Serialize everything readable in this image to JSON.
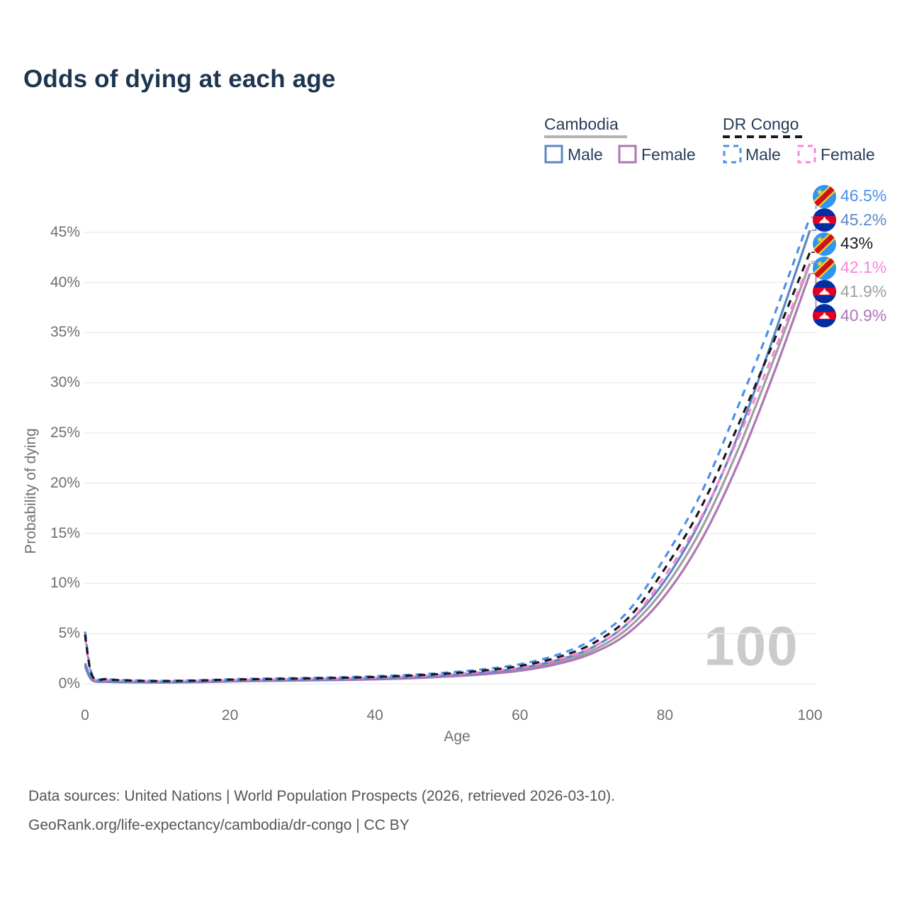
{
  "title": "Odds of dying at each age",
  "age_indicator": "100",
  "legend": {
    "groups": [
      {
        "id": "cambodia",
        "label": "Cambodia",
        "line_style": "solid",
        "items": [
          {
            "id": "camb_male",
            "label": "Male"
          },
          {
            "id": "camb_female",
            "label": "Female"
          }
        ]
      },
      {
        "id": "drcongo",
        "label": "DR Congo",
        "line_style": "dashed",
        "items": [
          {
            "id": "drc_male",
            "label": "Male"
          },
          {
            "id": "drc_female",
            "label": "Female"
          }
        ]
      }
    ]
  },
  "series_colors": {
    "camb_male": "#5b87c3",
    "camb_female": "#ad77b3",
    "camb_comb": "#9f9f9f",
    "drc_male": "#4b90ea",
    "drc_female": "#fb84da",
    "drc_comb": "#1a1a1a"
  },
  "ui_colors": {
    "title": "#1e3550",
    "legend_text": "#263d59",
    "axis_text": "#6f6f6f",
    "grid": "#ededed",
    "watermark": "#cbcbcb",
    "footer": "#555555",
    "cambodia_underline": "#b3b3b3",
    "drcongo_underline": "#1a1a1a"
  },
  "flag_colors": {
    "cambodia_blue": "#032ea1",
    "cambodia_red": "#e00025",
    "cambodia_white": "#ffffff",
    "drc_blue": "#2f95f3",
    "drc_yellow": "#f7d618",
    "drc_red": "#d01317"
  },
  "chart_data": {
    "type": "line",
    "title": "Odds of dying at each age",
    "xlabel": "Age",
    "ylabel": "Probability of dying",
    "xlim": [
      0,
      100
    ],
    "ylim_percent": [
      0,
      48
    ],
    "xticks": [
      0,
      20,
      40,
      60,
      80,
      100
    ],
    "yticks_percent": [
      0,
      5,
      10,
      15,
      20,
      25,
      30,
      35,
      40,
      45
    ],
    "grid": "horizontal-only",
    "legend_position": "top-right",
    "x": [
      0,
      1,
      3,
      5,
      10,
      15,
      20,
      25,
      30,
      35,
      40,
      45,
      50,
      55,
      60,
      65,
      70,
      75,
      80,
      85,
      90,
      95,
      100
    ],
    "series": [
      {
        "id": "camb_comb",
        "name": "Cambodia (both sexes)",
        "country": "Cambodia",
        "sex": "both",
        "line": "solid",
        "color_key": "camb_comb",
        "values": [
          1.88,
          0.38,
          0.22,
          0.17,
          0.14,
          0.18,
          0.27,
          0.32,
          0.36,
          0.41,
          0.48,
          0.6,
          0.78,
          1.02,
          1.42,
          2.12,
          3.32,
          5.6,
          9.6,
          15.4,
          23.2,
          32.3,
          41.9
        ],
        "end_label": "41.9%"
      },
      {
        "id": "camb_female",
        "name": "Cambodia Female",
        "country": "Cambodia",
        "sex": "female",
        "line": "solid",
        "color_key": "camb_female",
        "values": [
          1.72,
          0.35,
          0.2,
          0.16,
          0.13,
          0.16,
          0.24,
          0.29,
          0.33,
          0.38,
          0.44,
          0.55,
          0.72,
          0.94,
          1.3,
          1.95,
          3.05,
          5.1,
          8.8,
          14.3,
          21.8,
          30.9,
          40.9
        ],
        "end_label": "40.9%"
      },
      {
        "id": "camb_male",
        "name": "Cambodia Male",
        "country": "Cambodia",
        "sex": "male",
        "line": "solid",
        "color_key": "camb_male",
        "values": [
          2.05,
          0.42,
          0.25,
          0.19,
          0.16,
          0.2,
          0.3,
          0.35,
          0.4,
          0.46,
          0.53,
          0.66,
          0.86,
          1.12,
          1.56,
          2.32,
          3.62,
          6.1,
          10.3,
          16.4,
          24.6,
          34.6,
          45.2
        ],
        "end_label": "45.2%"
      },
      {
        "id": "drc_male",
        "name": "DR Congo Male",
        "country": "DR Congo",
        "sex": "male",
        "line": "dashed",
        "color_key": "drc_male",
        "values": [
          5.2,
          0.85,
          0.5,
          0.38,
          0.3,
          0.34,
          0.45,
          0.52,
          0.58,
          0.65,
          0.75,
          0.9,
          1.12,
          1.45,
          1.95,
          2.85,
          4.4,
          7.3,
          12.6,
          19.0,
          27.5,
          36.6,
          46.5
        ],
        "end_label": "46.5%"
      },
      {
        "id": "drc_female",
        "name": "DR Congo Female",
        "country": "DR Congo",
        "sex": "female",
        "line": "dashed",
        "color_key": "drc_female",
        "values": [
          4.6,
          0.72,
          0.42,
          0.32,
          0.25,
          0.28,
          0.37,
          0.43,
          0.48,
          0.54,
          0.62,
          0.75,
          0.93,
          1.2,
          1.62,
          2.38,
          3.66,
          6.1,
          10.8,
          16.6,
          24.3,
          33.0,
          42.1
        ],
        "end_label": "42.1%"
      },
      {
        "id": "drc_comb",
        "name": "DR Congo (both sexes)",
        "country": "DR Congo",
        "sex": "both",
        "line": "dashed",
        "color_key": "drc_comb",
        "values": [
          4.9,
          0.78,
          0.46,
          0.35,
          0.27,
          0.31,
          0.41,
          0.47,
          0.53,
          0.59,
          0.68,
          0.82,
          1.02,
          1.32,
          1.78,
          2.6,
          4.0,
          6.6,
          11.5,
          17.6,
          25.6,
          34.1,
          43.0
        ],
        "end_label": "43%"
      }
    ]
  },
  "end_labels": [
    {
      "series": "drc_male",
      "text": "46.5%",
      "flag": "drcongo"
    },
    {
      "series": "camb_male",
      "text": "45.2%",
      "flag": "cambodia"
    },
    {
      "series": "drc_comb",
      "text": "43%",
      "flag": "drcongo"
    },
    {
      "series": "drc_female",
      "text": "42.1%",
      "flag": "drcongo"
    },
    {
      "series": "camb_comb",
      "text": "41.9%",
      "flag": "cambodia"
    },
    {
      "series": "camb_female",
      "text": "40.9%",
      "flag": "cambodia"
    }
  ],
  "footer": {
    "line1": "Data sources: United Nations | World Population Prospects (2026, retrieved 2026-03-10).",
    "line2": "GeoRank.org/life-expectancy/cambodia/dr-congo | CC BY"
  }
}
